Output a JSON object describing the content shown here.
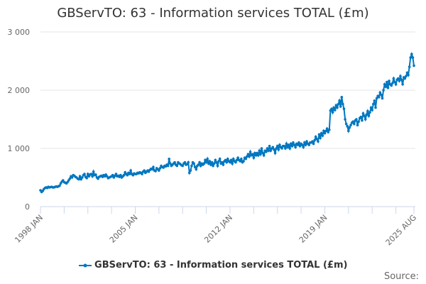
{
  "chart_data": {
    "type": "line",
    "title": "GBServTO: 63 - Information services TOTAL (£m)",
    "x_start": "1998 JAN",
    "x_end": "2025 AUG",
    "frequency": "monthly",
    "x_tick_labels": [
      "1998 JAN",
      "2005 JAN",
      "2012 JAN",
      "2019 JAN",
      "2025 AUG"
    ],
    "y_ticks": [
      0,
      1000,
      2000,
      3000
    ],
    "y_tick_labels": [
      "0",
      "1 000",
      "2 000",
      "3 000"
    ],
    "ylim": [
      0,
      3000
    ],
    "grid": true,
    "legend_placement": "bottom",
    "series": [
      {
        "name": "GBServTO: 63 - Information services TOTAL (£m)",
        "color": "#0077c0",
        "values": [
          280,
          250,
          270,
          300,
          320,
          330,
          320,
          340,
          330,
          335,
          340,
          330,
          330,
          340,
          345,
          340,
          350,
          360,
          400,
          430,
          450,
          420,
          410,
          400,
          420,
          450,
          480,
          520,
          500,
          540,
          530,
          510,
          500,
          480,
          470,
          520,
          470,
          500,
          540,
          560,
          510,
          490,
          560,
          520,
          550,
          560,
          520,
          600,
          540,
          550,
          500,
          480,
          510,
          520,
          530,
          510,
          540,
          520,
          550,
          520,
          490,
          500,
          510,
          520,
          540,
          500,
          530,
          560,
          520,
          530,
          510,
          540,
          500,
          520,
          540,
          590,
          560,
          540,
          580,
          560,
          620,
          560,
          540,
          570,
          560,
          560,
          580,
          570,
          590,
          580,
          560,
          600,
          620,
          580,
          600,
          620,
          600,
          630,
          650,
          640,
          680,
          620,
          610,
          660,
          640,
          620,
          660,
          700,
          680,
          670,
          700,
          690,
          720,
          700,
          820,
          740,
          700,
          720,
          740,
          760,
          720,
          700,
          760,
          740,
          730,
          710,
          700,
          740,
          760,
          720,
          730,
          760,
          580,
          620,
          700,
          760,
          740,
          680,
          640,
          700,
          720,
          760,
          700,
          740,
          720,
          740,
          800,
          760,
          820,
          740,
          780,
          720,
          760,
          700,
          740,
          800,
          760,
          700,
          780,
          820,
          740,
          760,
          720,
          780,
          800,
          760,
          820,
          780,
          760,
          800,
          740,
          820,
          780,
          760,
          800,
          840,
          800,
          780,
          820,
          760,
          780,
          840,
          820,
          860,
          900,
          860,
          940,
          880,
          900,
          840,
          920,
          880,
          920,
          880,
          960,
          900,
          1000,
          920,
          880,
          960,
          940,
          1000,
          960,
          1040,
          960,
          1000,
          1020,
          980,
          920,
          1000,
          1040,
          980,
          1060,
          1020,
          1000,
          1040,
          1040,
          1000,
          1080,
          1020,
          1060,
          1000,
          1080,
          1040,
          1100,
          1060,
          1020,
          1080,
          1060,
          1100,
          1040,
          1080,
          1060,
          1020,
          1100,
          1060,
          1120,
          1080,
          1060,
          1100,
          1100,
          1120,
          1080,
          1140,
          1200,
          1160,
          1120,
          1240,
          1180,
          1260,
          1220,
          1300,
          1260,
          1300,
          1340,
          1280,
          1320,
          1650,
          1680,
          1620,
          1700,
          1660,
          1740,
          1700,
          1760,
          1820,
          1720,
          1880,
          1760,
          1680,
          1500,
          1420,
          1380,
          1300,
          1360,
          1400,
          1440,
          1460,
          1420,
          1480,
          1500,
          1400,
          1460,
          1520,
          1540,
          1480,
          1600,
          1560,
          1500,
          1580,
          1640,
          1560,
          1620,
          1700,
          1660,
          1760,
          1820,
          1700,
          1860,
          1900,
          1880,
          1960,
          1920,
          1860,
          2000,
          2100,
          2060,
          2140,
          2040,
          2160,
          2100,
          2080,
          2120,
          2200,
          2140,
          2100,
          2180,
          2200,
          2160,
          2240,
          2180,
          2100,
          2220,
          2200,
          2240,
          2300,
          2260,
          2400,
          2560,
          2620,
          2560,
          2420
        ]
      }
    ]
  }
}
